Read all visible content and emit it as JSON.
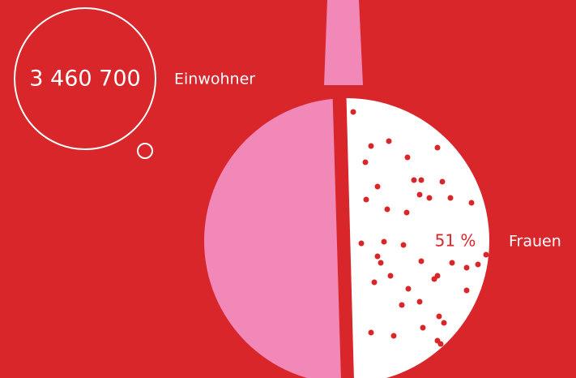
{
  "population": {
    "value": "3 460 700",
    "label": "Einwohner"
  },
  "women": {
    "value": "51 %",
    "label": "Frauen"
  }
}
